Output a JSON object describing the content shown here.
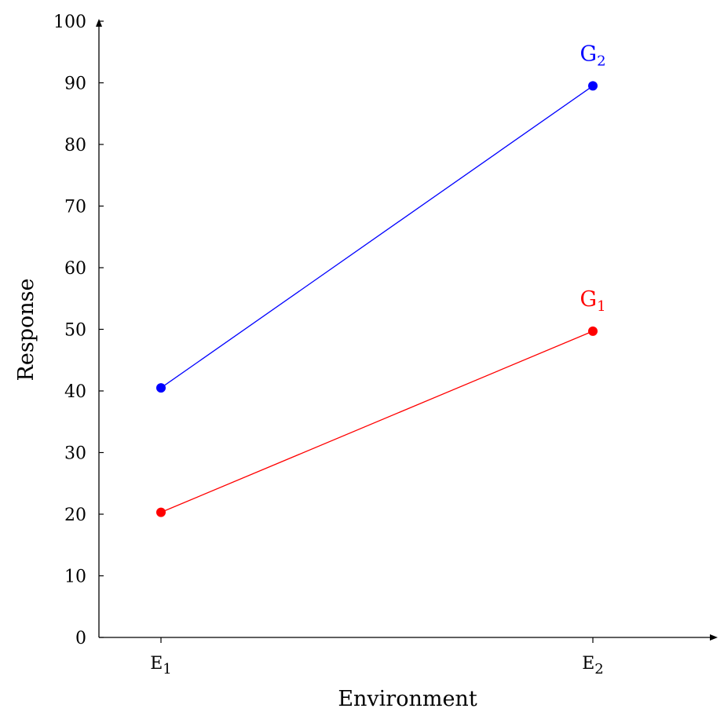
{
  "chart_data": {
    "type": "line",
    "xlabel": "Environment",
    "ylabel": "Response",
    "categories": [
      {
        "base": "E",
        "sub": "1"
      },
      {
        "base": "E",
        "sub": "2"
      }
    ],
    "ylim": [
      0,
      100
    ],
    "yticks": [
      0,
      10,
      20,
      30,
      40,
      50,
      60,
      70,
      80,
      90,
      100
    ],
    "grid": false,
    "series": [
      {
        "name": "G",
        "sub": "1",
        "color": "#ff0000",
        "values": [
          20.3,
          49.7
        ]
      },
      {
        "name": "G",
        "sub": "2",
        "color": "#0000ff",
        "values": [
          40.5,
          89.5
        ]
      }
    ]
  }
}
